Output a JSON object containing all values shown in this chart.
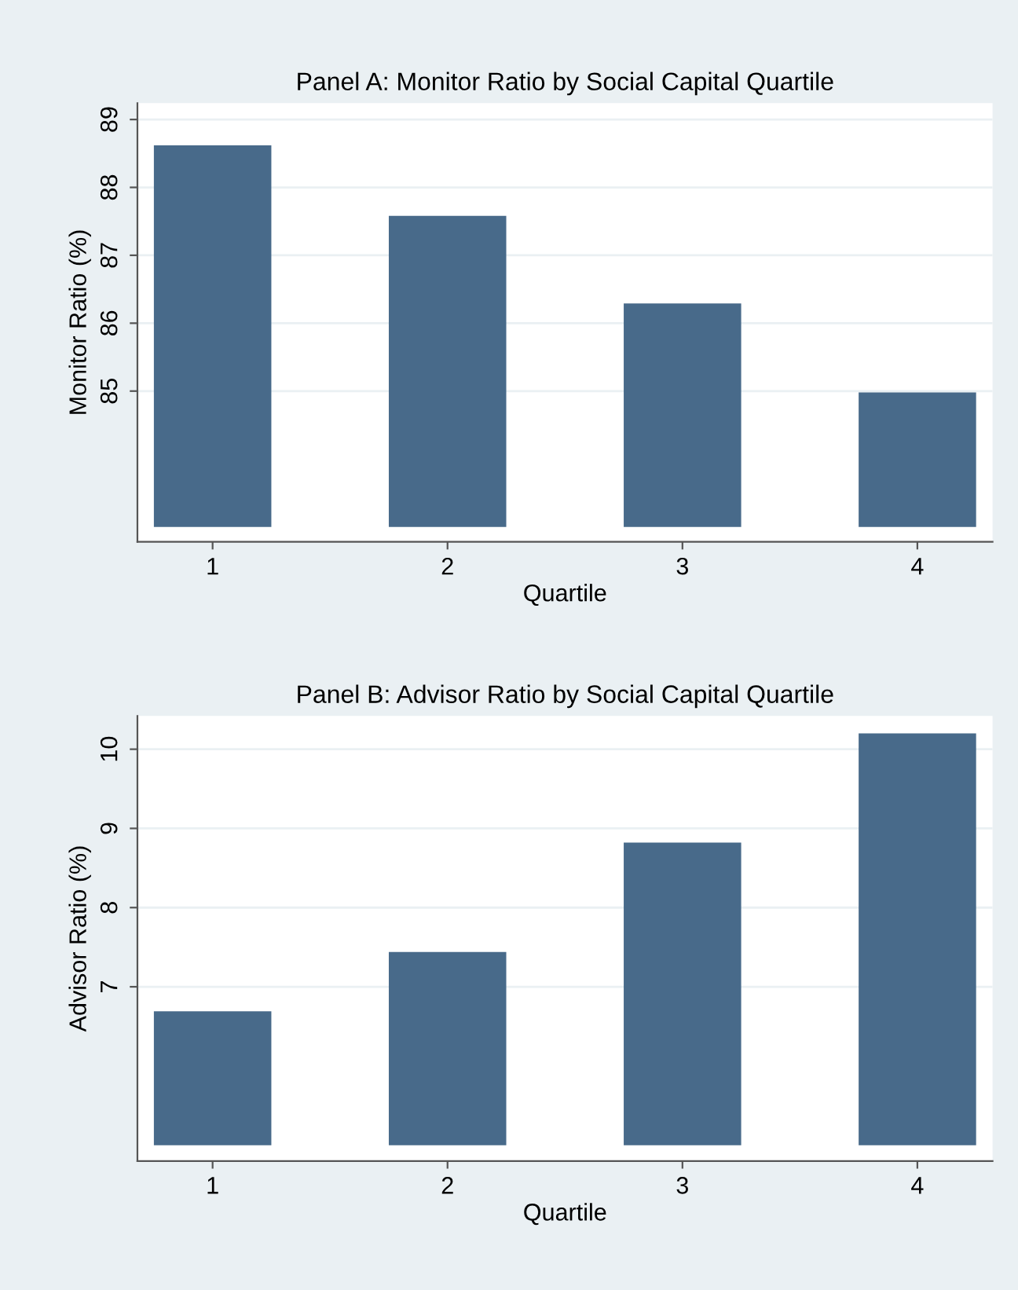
{
  "chart_data": [
    {
      "type": "bar",
      "title": "Panel A: Monitor Ratio by Social Capital Quartile",
      "xlabel": "Quartile",
      "ylabel": "Monitor Ratio (%)",
      "categories": [
        "1",
        "2",
        "3",
        "4"
      ],
      "base": [
        83,
        83,
        83,
        83
      ],
      "values": [
        5.62,
        4.58,
        3.29,
        1.98
      ],
      "color": "#486a8a",
      "ylim": [
        82.78,
        89.24
      ],
      "yticks": [
        85,
        86,
        87,
        88,
        89
      ],
      "grid": "y"
    },
    {
      "type": "bar",
      "title": "Panel B: Advisor Ratio by Social Capital Quartile",
      "xlabel": "Quartile",
      "ylabel": "Advisor Ratio (%)",
      "categories": [
        "1",
        "2",
        "3",
        "4"
      ],
      "base": [
        5,
        5,
        5,
        5
      ],
      "values": [
        1.69,
        2.44,
        3.82,
        5.2
      ],
      "color": "#486a8a",
      "ylim": [
        4.8,
        10.42
      ],
      "yticks": [
        7,
        8,
        9,
        10
      ],
      "grid": "y"
    }
  ]
}
